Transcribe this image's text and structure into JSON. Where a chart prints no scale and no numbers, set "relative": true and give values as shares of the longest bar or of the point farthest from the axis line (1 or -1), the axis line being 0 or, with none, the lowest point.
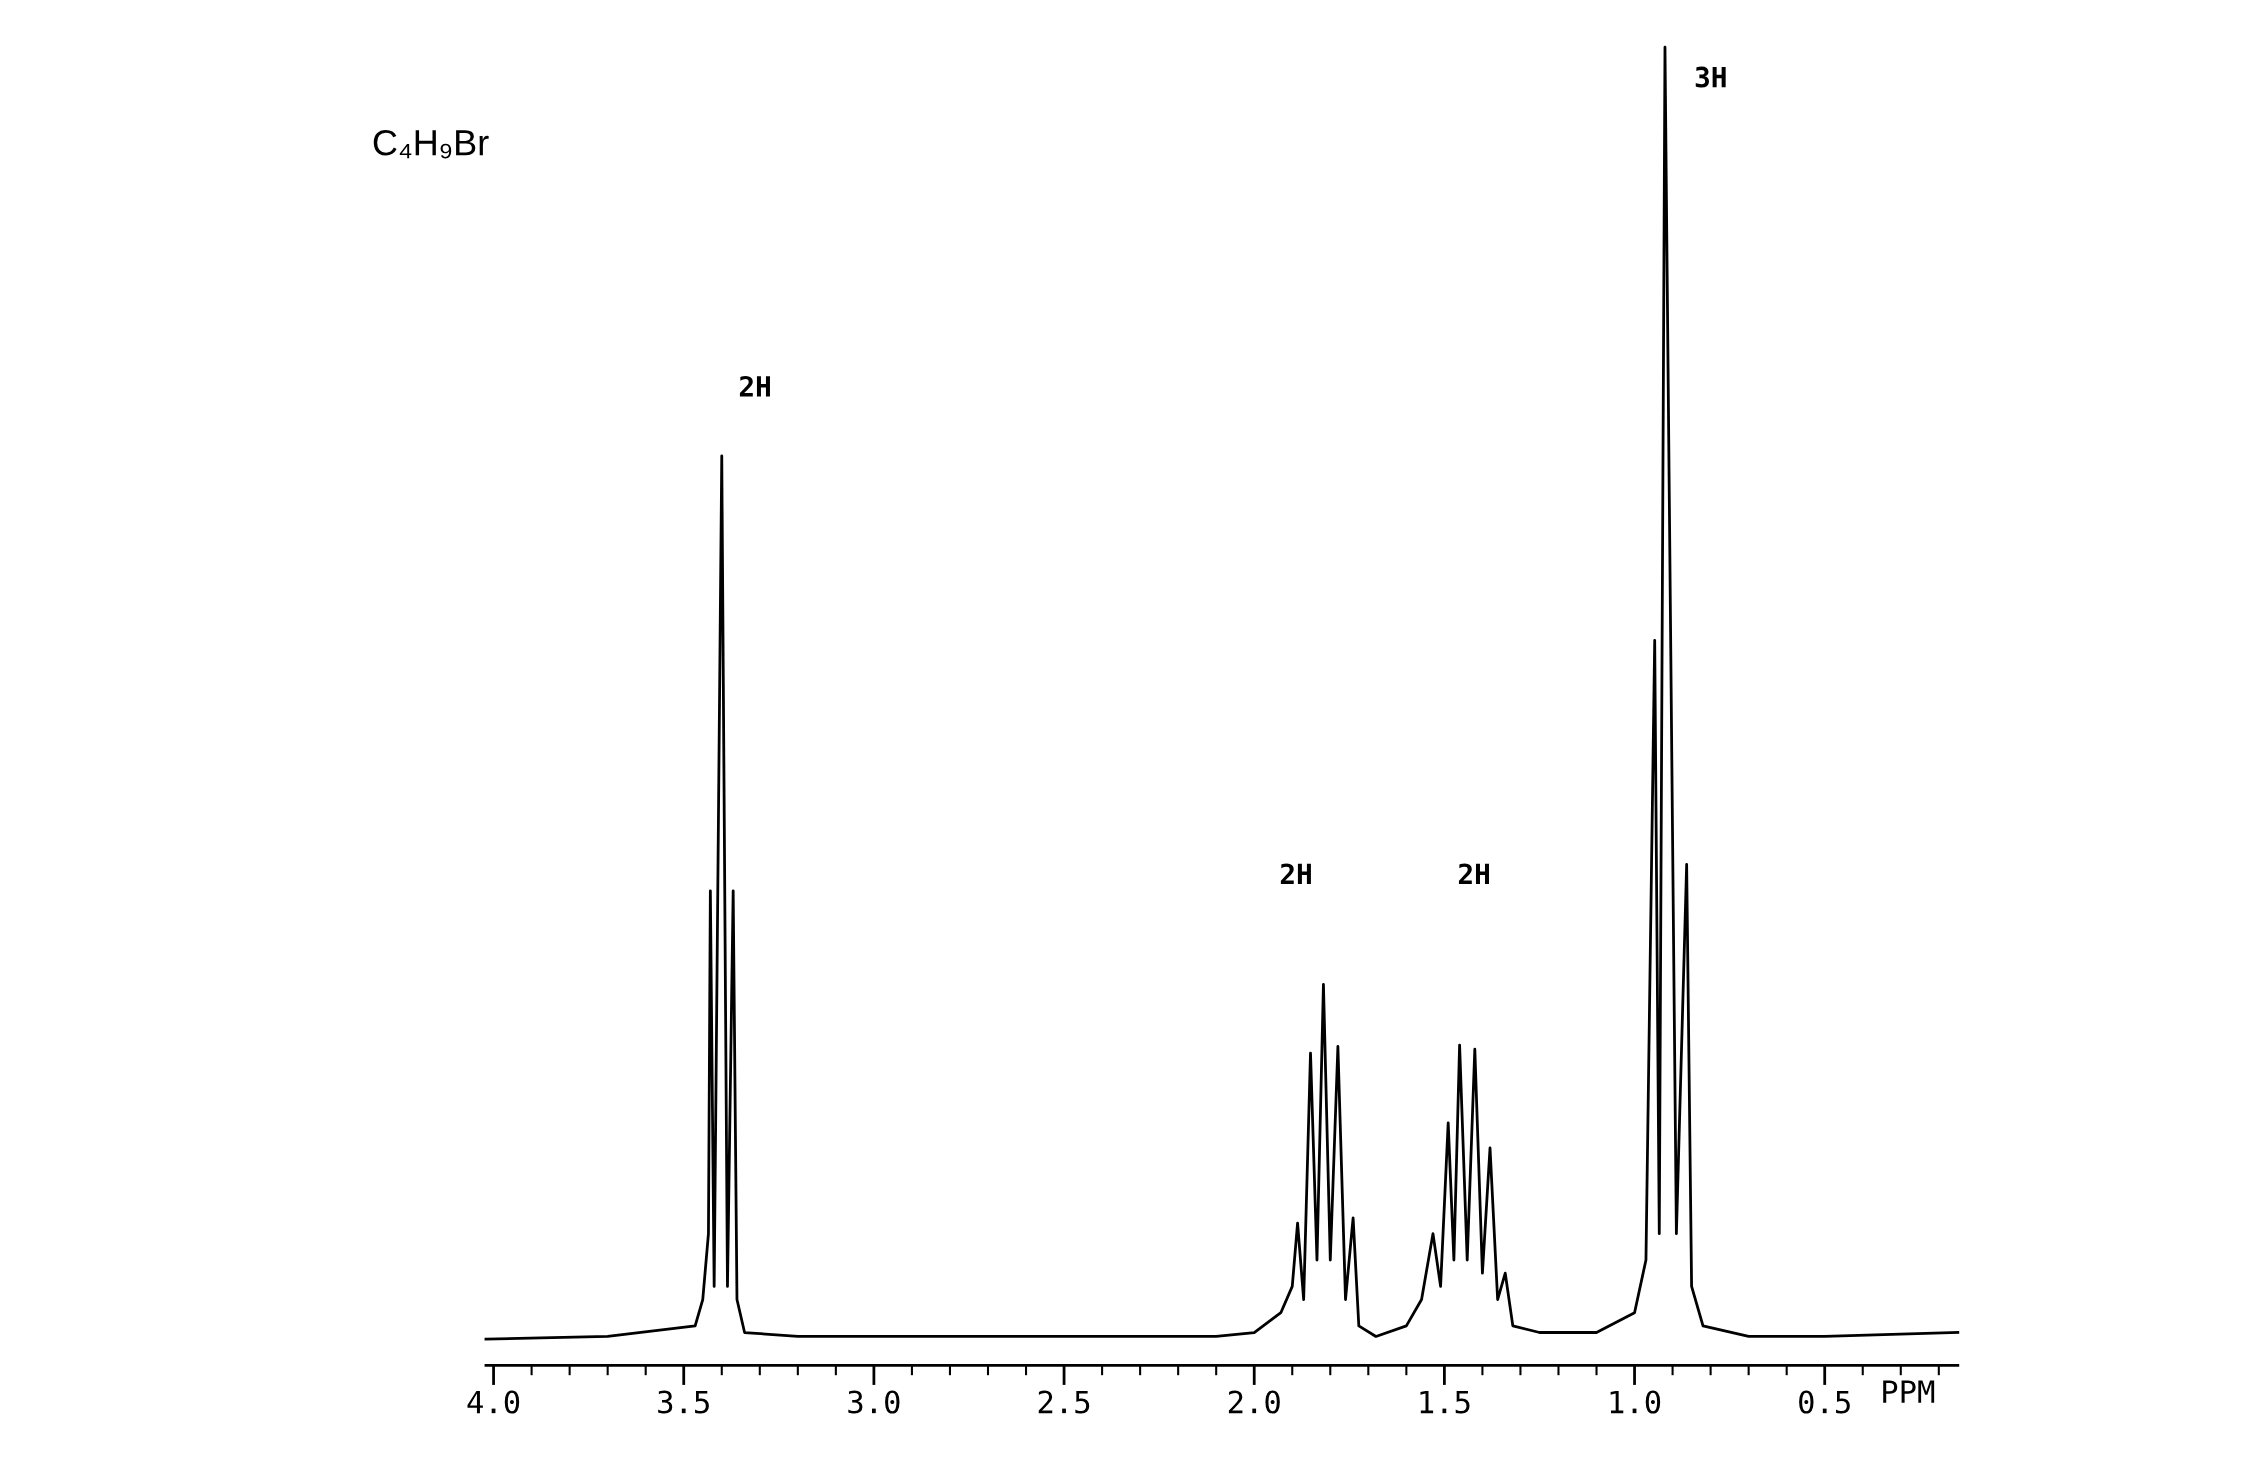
{
  "chart_data": {
    "type": "line",
    "relative": true,
    "color": "#000000",
    "xlabel": "PPM",
    "grid": false,
    "legend": false,
    "marker": "none",
    "line_style": "solid",
    "xlim": [
      4.02,
      0.15
    ],
    "xticks": [
      {
        "value": 4.0,
        "label": "4.0"
      },
      {
        "value": 3.5,
        "label": "3.5"
      },
      {
        "value": 3.0,
        "label": "3.0"
      },
      {
        "value": 2.5,
        "label": "2.5"
      },
      {
        "value": 2.0,
        "label": "2.0"
      },
      {
        "value": 1.5,
        "label": "1.5"
      },
      {
        "value": 1.0,
        "label": "1.0"
      },
      {
        "value": 0.5,
        "label": "0.5"
      }
    ],
    "x": [
      4.02,
      3.7,
      3.47,
      3.45,
      3.435,
      3.43,
      3.42,
      3.4,
      3.385,
      3.37,
      3.36,
      3.34,
      3.2,
      2.5,
      2.1,
      2.0,
      1.93,
      1.9,
      1.886,
      1.87,
      1.852,
      1.835,
      1.818,
      1.8,
      1.78,
      1.76,
      1.74,
      1.725,
      1.68,
      1.6,
      1.56,
      1.53,
      1.51,
      1.49,
      1.475,
      1.46,
      1.44,
      1.42,
      1.4,
      1.38,
      1.36,
      1.34,
      1.32,
      1.25,
      1.1,
      1.0,
      0.97,
      0.947,
      0.935,
      0.92,
      0.89,
      0.863,
      0.85,
      0.82,
      0.7,
      0.5,
      0.15
    ],
    "values": [
      0.02,
      0.022,
      0.03,
      0.05,
      0.1,
      0.36,
      0.06,
      0.69,
      0.06,
      0.36,
      0.05,
      0.025,
      0.022,
      0.022,
      0.022,
      0.025,
      0.04,
      0.06,
      0.108,
      0.05,
      0.237,
      0.08,
      0.289,
      0.08,
      0.242,
      0.05,
      0.112,
      0.03,
      0.022,
      0.03,
      0.05,
      0.1,
      0.06,
      0.184,
      0.08,
      0.243,
      0.08,
      0.24,
      0.07,
      0.165,
      0.05,
      0.07,
      0.03,
      0.025,
      0.025,
      0.04,
      0.08,
      0.55,
      0.1,
      1.0,
      0.1,
      0.38,
      0.06,
      0.03,
      0.022,
      0.022,
      0.025
    ],
    "annotations": [
      "C₄H₉Br",
      "2H",
      "2H",
      "2H",
      "3H"
    ]
  }
}
